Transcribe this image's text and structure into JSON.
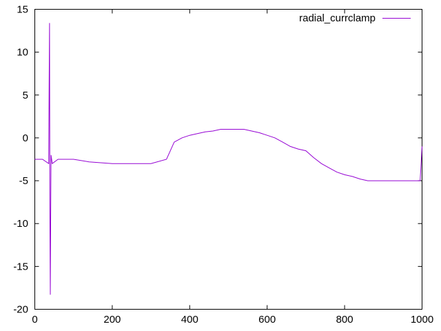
{
  "chart_data": {
    "type": "line",
    "title": "",
    "xlabel": "",
    "ylabel": "",
    "xlim": [
      0,
      1000
    ],
    "ylim": [
      -20,
      15
    ],
    "x_ticks": [
      0,
      200,
      400,
      600,
      800,
      1000
    ],
    "y_ticks": [
      -20,
      -15,
      -10,
      -5,
      0,
      5,
      10,
      15
    ],
    "grid": false,
    "legend_position": "top-right",
    "series": [
      {
        "name": "radial_currclamp",
        "color": "#9400d3",
        "x": [
          0,
          20,
          36,
          37,
          38,
          39,
          40,
          41,
          42,
          45,
          60,
          100,
          140,
          200,
          260,
          300,
          340,
          350,
          360,
          380,
          400,
          420,
          440,
          460,
          480,
          500,
          540,
          560,
          580,
          600,
          620,
          640,
          660,
          680,
          700,
          720,
          740,
          760,
          780,
          800,
          820,
          840,
          860,
          880,
          900,
          920,
          940,
          960,
          980,
          995,
          1000
        ],
        "y": [
          -2.5,
          -2.5,
          -3,
          6,
          13.4,
          -8,
          -18.3,
          -10,
          -2,
          -3,
          -2.5,
          -2.5,
          -2.8,
          -3,
          -3,
          -3,
          -2.5,
          -1.5,
          -0.5,
          0,
          0.3,
          0.5,
          0.7,
          0.8,
          1,
          1,
          1,
          0.8,
          0.6,
          0.3,
          0,
          -0.5,
          -1,
          -1.3,
          -1.5,
          -2.3,
          -3,
          -3.5,
          -4,
          -4.3,
          -4.5,
          -4.8,
          -5,
          -5,
          -5,
          -5,
          -5,
          -5,
          -5,
          -5,
          -1
        ]
      }
    ]
  }
}
